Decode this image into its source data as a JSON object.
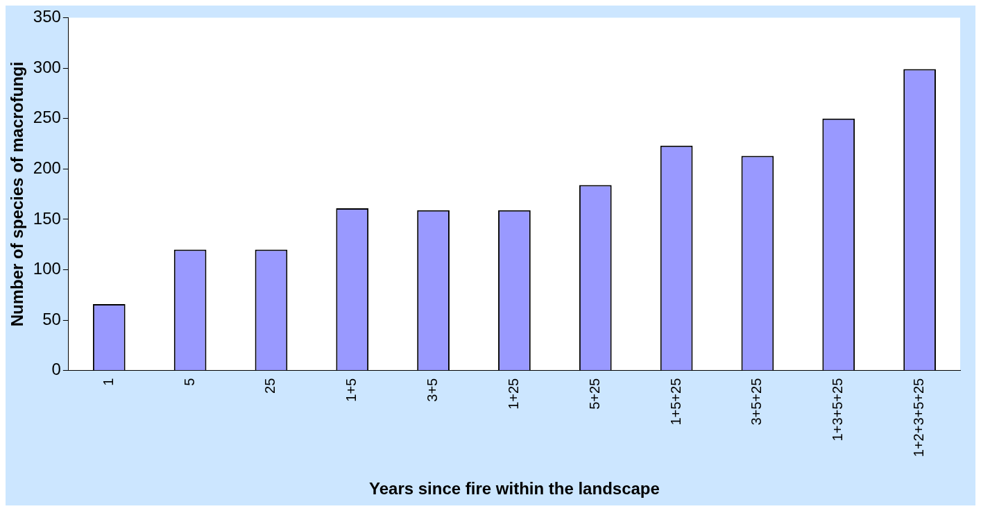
{
  "chart_data": {
    "type": "bar",
    "xlabel": "Years since fire within the landscape",
    "ylabel": "Number of species of macrofungi",
    "categories": [
      "1",
      "5",
      "25",
      "1+5",
      "3+5",
      "1+25",
      "5+25",
      "1+5+25",
      "3+5+25",
      "1+3+5+25",
      "1+2+3+5+25"
    ],
    "values": [
      66,
      120,
      120,
      161,
      159,
      159,
      184,
      223,
      213,
      250,
      299
    ],
    "color": "#9999ff",
    "ylim": [
      0,
      350
    ],
    "yticks": [
      0,
      50,
      100,
      150,
      200,
      250,
      300,
      350
    ],
    "grid": false,
    "legend": false
  }
}
